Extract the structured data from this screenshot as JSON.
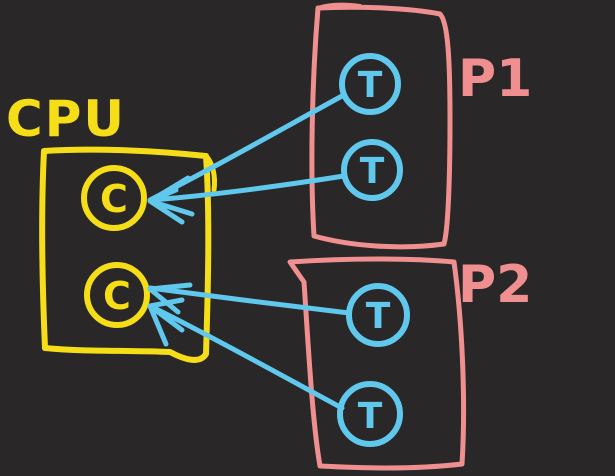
{
  "colors": {
    "background": "#2a2728",
    "cpu": "#f5dd18",
    "process": "#f08f8f",
    "thread": "#5fc8ec"
  },
  "cpu": {
    "label": "CPU",
    "core_label": "C"
  },
  "processes": [
    {
      "label": "P1",
      "thread_label": "T"
    },
    {
      "label": "P2",
      "thread_label": "T"
    }
  ]
}
